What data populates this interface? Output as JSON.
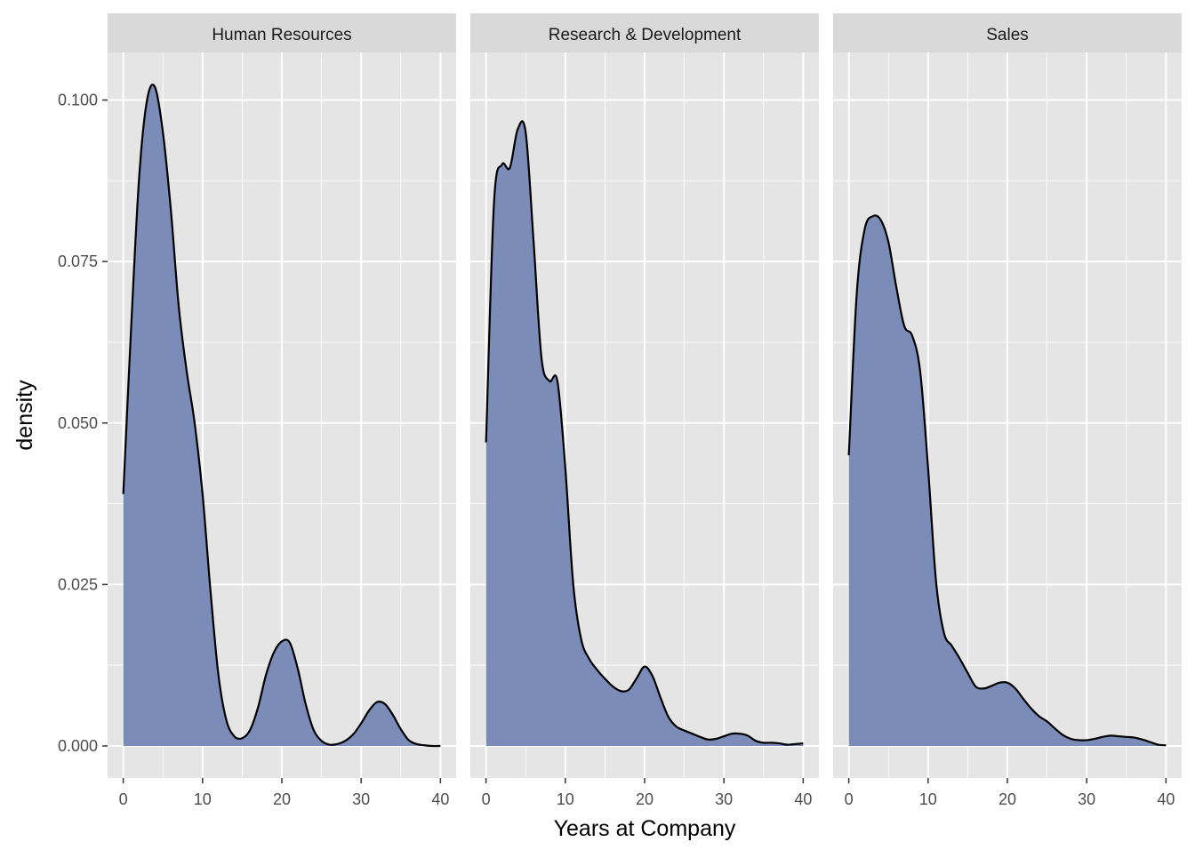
{
  "chart_data": {
    "type": "area",
    "xlabel": "Years at Company",
    "ylabel": "density",
    "xlim": [
      0,
      40
    ],
    "ylim": [
      0,
      0.1
    ],
    "x_ticks": [
      0,
      10,
      20,
      30,
      40
    ],
    "x_tick_labels": [
      "0",
      "10",
      "20",
      "30",
      "40"
    ],
    "y_ticks": [
      0,
      0.025,
      0.05,
      0.075,
      0.1
    ],
    "y_tick_labels": [
      "0.000",
      "0.025",
      "0.050",
      "0.075",
      "0.100"
    ],
    "grid": true,
    "legend": "none",
    "colors": {
      "panel_background": "#e5e5e5",
      "strip_background": "#d9d9d9",
      "grid": "#ffffff",
      "fill": "#7b8cb8",
      "line": "#000000"
    },
    "facets": [
      {
        "label": "Human Resources",
        "x": [
          0,
          1,
          2,
          3,
          4,
          5,
          6,
          7,
          8,
          9,
          10,
          11,
          12,
          13,
          14,
          15,
          16,
          17,
          18,
          19,
          20,
          21,
          22,
          23,
          24,
          25,
          26,
          27,
          28,
          29,
          30,
          31,
          32,
          33,
          34,
          35,
          36,
          37,
          38,
          39,
          40
        ],
        "y": [
          0.039,
          0.065,
          0.088,
          0.1,
          0.102,
          0.095,
          0.083,
          0.068,
          0.058,
          0.05,
          0.039,
          0.024,
          0.011,
          0.004,
          0.0015,
          0.0012,
          0.0025,
          0.006,
          0.011,
          0.0145,
          0.0162,
          0.016,
          0.012,
          0.0065,
          0.0025,
          0.0008,
          0.0002,
          0.0003,
          0.0008,
          0.0018,
          0.0035,
          0.0055,
          0.0068,
          0.0065,
          0.0048,
          0.0026,
          0.0009,
          0.0003,
          0.0001,
          0.0,
          0.0
        ]
      },
      {
        "label": "Research & Development",
        "x": [
          0,
          1,
          2,
          3,
          4,
          5,
          6,
          7,
          8,
          9,
          10,
          11,
          12,
          13,
          14,
          15,
          16,
          17,
          18,
          19,
          20,
          21,
          22,
          23,
          24,
          25,
          26,
          27,
          28,
          29,
          30,
          31,
          32,
          33,
          34,
          35,
          36,
          37,
          38,
          39,
          40
        ],
        "y": [
          0.047,
          0.084,
          0.09,
          0.0895,
          0.0955,
          0.095,
          0.078,
          0.06,
          0.0565,
          0.0565,
          0.043,
          0.025,
          0.0165,
          0.0135,
          0.0118,
          0.0104,
          0.0092,
          0.0085,
          0.0087,
          0.0105,
          0.0123,
          0.0108,
          0.0075,
          0.0045,
          0.003,
          0.0024,
          0.0019,
          0.0014,
          0.001,
          0.0011,
          0.0015,
          0.0019,
          0.0019,
          0.0016,
          0.0008,
          0.0005,
          0.0005,
          0.0004,
          0.0002,
          0.0003,
          0.0004
        ]
      },
      {
        "label": "Sales",
        "x": [
          0,
          1,
          2,
          3,
          4,
          5,
          6,
          7,
          8,
          9,
          10,
          11,
          12,
          13,
          14,
          15,
          16,
          17,
          18,
          19,
          20,
          21,
          22,
          23,
          24,
          25,
          26,
          27,
          28,
          29,
          30,
          31,
          32,
          33,
          34,
          35,
          36,
          37,
          38,
          39,
          40
        ],
        "y": [
          0.045,
          0.07,
          0.08,
          0.082,
          0.0815,
          0.078,
          0.071,
          0.065,
          0.0635,
          0.058,
          0.043,
          0.0255,
          0.0175,
          0.0155,
          0.0135,
          0.0113,
          0.0092,
          0.0089,
          0.0093,
          0.0098,
          0.0098,
          0.0089,
          0.0073,
          0.0058,
          0.0046,
          0.0038,
          0.0027,
          0.0017,
          0.0011,
          0.0009,
          0.0009,
          0.0011,
          0.0014,
          0.0016,
          0.0015,
          0.0014,
          0.0013,
          0.001,
          0.0006,
          0.0002,
          0.0001
        ]
      }
    ]
  }
}
